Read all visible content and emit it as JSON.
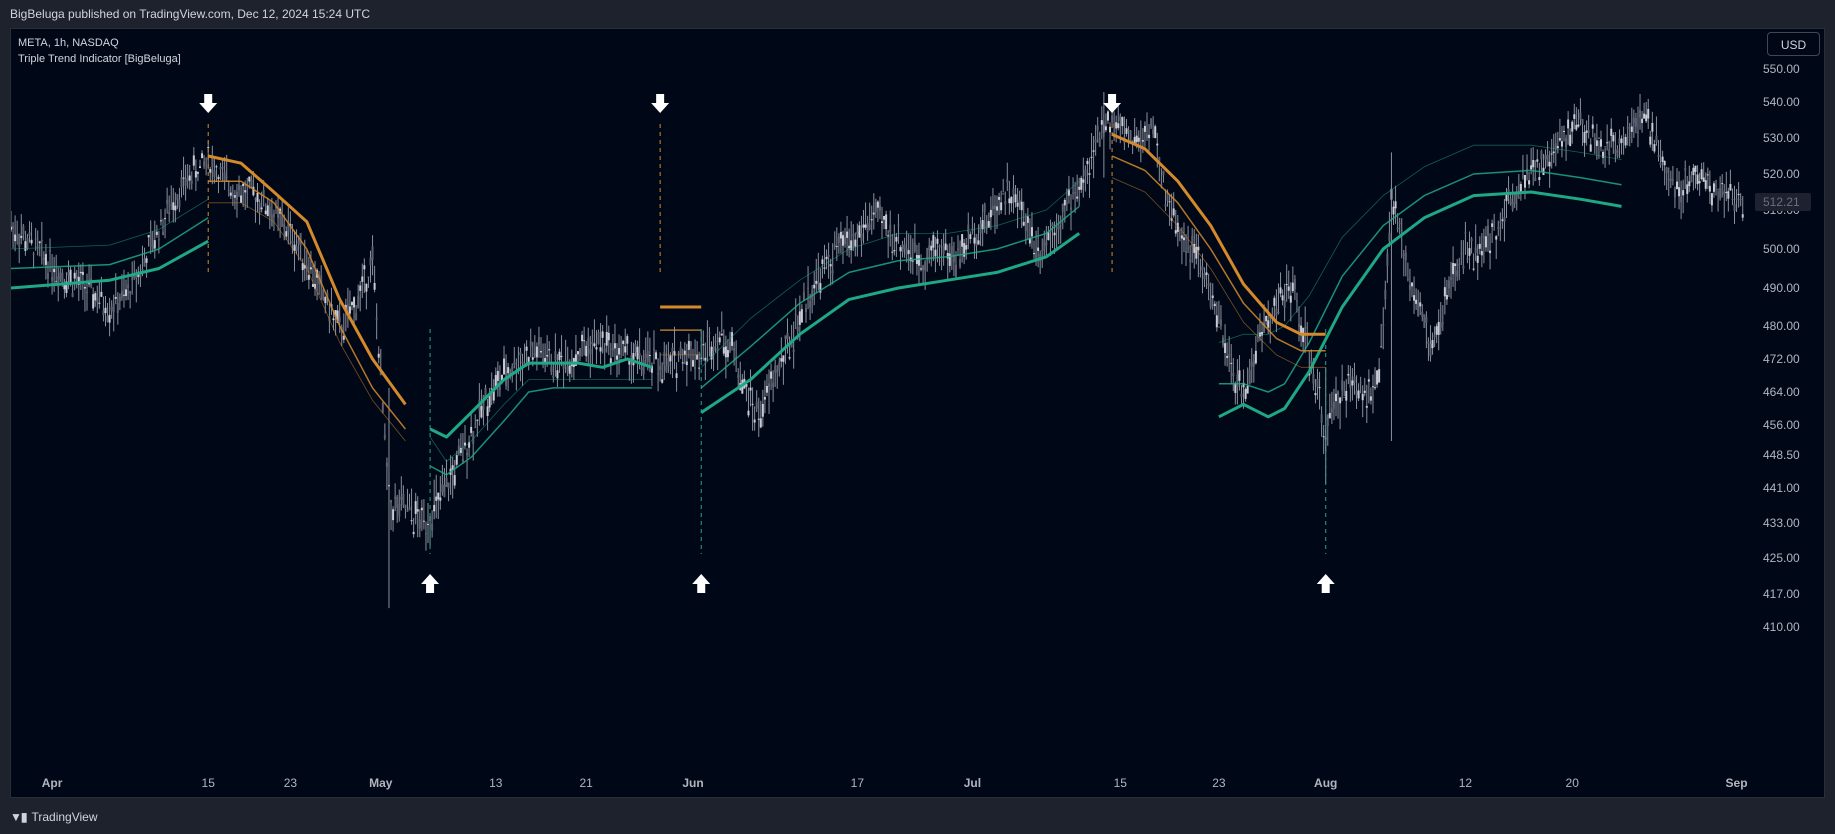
{
  "header": {
    "publish_info": "BigBeluga published on TradingView.com, Dec 12, 2024 15:24 UTC"
  },
  "legend": {
    "symbol_line": "META, 1h, NASDAQ",
    "indicator_name": "Triple Trend Indicator [BigBeluga]"
  },
  "currency": "USD",
  "footer": {
    "brand": "TradingView"
  },
  "colors": {
    "bg": "#000818",
    "up": "#1fa886",
    "down": "#d4892a",
    "candle": "#8a8f9c",
    "axis_text": "#b2b5be"
  },
  "chart_data": {
    "type": "line",
    "title": "",
    "y_axis": {
      "ticks": [
        550.0,
        540.0,
        530.0,
        520.0,
        510.0,
        500.0,
        490.0,
        480.0,
        472.0,
        464.0,
        456.0,
        448.5,
        441.0,
        433.0,
        425.0,
        417.0,
        410.0
      ]
    },
    "x_axis": {
      "labels": [
        "Apr",
        "15",
        "23",
        "May",
        "13",
        "21",
        "Jun",
        "17",
        "Jul",
        "15",
        "23",
        "Aug",
        "12",
        "20",
        "Sep"
      ]
    },
    "last_price": "512.21",
    "price_series": [
      {
        "t": 0,
        "p": 506
      },
      {
        "t": 3,
        "p": 500
      },
      {
        "t": 6,
        "p": 494
      },
      {
        "t": 9,
        "p": 490
      },
      {
        "t": 12,
        "p": 485
      },
      {
        "t": 14,
        "p": 488
      },
      {
        "t": 16,
        "p": 496
      },
      {
        "t": 18,
        "p": 505
      },
      {
        "t": 20,
        "p": 514
      },
      {
        "t": 22,
        "p": 520
      },
      {
        "t": 24,
        "p": 524
      },
      {
        "t": 26,
        "p": 518
      },
      {
        "t": 28,
        "p": 515
      },
      {
        "t": 30,
        "p": 514
      },
      {
        "t": 32,
        "p": 509
      },
      {
        "t": 34,
        "p": 504
      },
      {
        "t": 36,
        "p": 497
      },
      {
        "t": 38,
        "p": 488
      },
      {
        "t": 40,
        "p": 479
      },
      {
        "t": 42,
        "p": 486
      },
      {
        "t": 44,
        "p": 497
      },
      {
        "t": 46,
        "p": 437
      },
      {
        "t": 48,
        "p": 436
      },
      {
        "t": 50,
        "p": 433
      },
      {
        "t": 52,
        "p": 437
      },
      {
        "t": 54,
        "p": 445
      },
      {
        "t": 56,
        "p": 454
      },
      {
        "t": 58,
        "p": 463
      },
      {
        "t": 60,
        "p": 468
      },
      {
        "t": 62,
        "p": 472
      },
      {
        "t": 64,
        "p": 474
      },
      {
        "t": 66,
        "p": 471
      },
      {
        "t": 68,
        "p": 472
      },
      {
        "t": 70,
        "p": 475
      },
      {
        "t": 72,
        "p": 476
      },
      {
        "t": 74,
        "p": 474
      },
      {
        "t": 76,
        "p": 472
      },
      {
        "t": 78,
        "p": 471
      },
      {
        "t": 80,
        "p": 470
      },
      {
        "t": 82,
        "p": 474
      },
      {
        "t": 84,
        "p": 473
      },
      {
        "t": 86,
        "p": 478
      },
      {
        "t": 88,
        "p": 474
      },
      {
        "t": 89,
        "p": 466
      },
      {
        "t": 91,
        "p": 458
      },
      {
        "t": 93,
        "p": 468
      },
      {
        "t": 95,
        "p": 477
      },
      {
        "t": 97,
        "p": 488
      },
      {
        "t": 99,
        "p": 495
      },
      {
        "t": 101,
        "p": 501
      },
      {
        "t": 103,
        "p": 503
      },
      {
        "t": 105,
        "p": 509
      },
      {
        "t": 107,
        "p": 504
      },
      {
        "t": 109,
        "p": 500
      },
      {
        "t": 111,
        "p": 497
      },
      {
        "t": 113,
        "p": 501
      },
      {
        "t": 115,
        "p": 497
      },
      {
        "t": 117,
        "p": 504
      },
      {
        "t": 119,
        "p": 508
      },
      {
        "t": 121,
        "p": 516
      },
      {
        "t": 123,
        "p": 510
      },
      {
        "t": 125,
        "p": 500
      },
      {
        "t": 127,
        "p": 506
      },
      {
        "t": 129,
        "p": 513
      },
      {
        "t": 131,
        "p": 520
      },
      {
        "t": 133,
        "p": 535
      },
      {
        "t": 135,
        "p": 533
      },
      {
        "t": 137,
        "p": 529
      },
      {
        "t": 139,
        "p": 534
      },
      {
        "t": 140,
        "p": 518
      },
      {
        "t": 142,
        "p": 505
      },
      {
        "t": 144,
        "p": 499
      },
      {
        "t": 146,
        "p": 489
      },
      {
        "t": 148,
        "p": 472
      },
      {
        "t": 150,
        "p": 463
      },
      {
        "t": 152,
        "p": 478
      },
      {
        "t": 154,
        "p": 486
      },
      {
        "t": 156,
        "p": 490
      },
      {
        "t": 158,
        "p": 472
      },
      {
        "t": 160,
        "p": 454
      },
      {
        "t": 162,
        "p": 465
      },
      {
        "t": 164,
        "p": 466
      },
      {
        "t": 166,
        "p": 463
      },
      {
        "t": 167,
        "p": 478
      },
      {
        "t": 168,
        "p": 514
      },
      {
        "t": 169,
        "p": 503
      },
      {
        "t": 171,
        "p": 487
      },
      {
        "t": 173,
        "p": 474
      },
      {
        "t": 175,
        "p": 490
      },
      {
        "t": 177,
        "p": 500
      },
      {
        "t": 179,
        "p": 499
      },
      {
        "t": 181,
        "p": 506
      },
      {
        "t": 183,
        "p": 516
      },
      {
        "t": 185,
        "p": 522
      },
      {
        "t": 187,
        "p": 522
      },
      {
        "t": 189,
        "p": 531
      },
      {
        "t": 191,
        "p": 534
      },
      {
        "t": 193,
        "p": 528
      },
      {
        "t": 195,
        "p": 528
      },
      {
        "t": 197,
        "p": 533
      },
      {
        "t": 199,
        "p": 535
      },
      {
        "t": 201,
        "p": 523
      },
      {
        "t": 203,
        "p": 515
      },
      {
        "t": 205,
        "p": 521
      },
      {
        "t": 207,
        "p": 516
      },
      {
        "t": 209,
        "p": 515
      },
      {
        "t": 211,
        "p": 511
      }
    ],
    "series": [
      {
        "trend": "up",
        "segments": [
          {
            "outer": [
              [
                0,
                490
              ],
              [
                12,
                492
              ],
              [
                18,
                495
              ],
              [
                24,
                502
              ]
            ],
            "mid": [
              [
                0,
                495
              ],
              [
                12,
                496
              ],
              [
                18,
                500
              ],
              [
                24,
                508
              ]
            ],
            "inner": [
              [
                0,
                500
              ],
              [
                12,
                501
              ],
              [
                18,
                505
              ],
              [
                24,
                513
              ]
            ]
          },
          {
            "outer": [
              [
                51,
                455
              ],
              [
                53,
                453
              ],
              [
                56,
                459
              ],
              [
                60,
                467
              ],
              [
                63,
                471
              ],
              [
                66,
                471
              ],
              [
                69,
                471
              ],
              [
                72,
                470
              ],
              [
                75,
                472
              ],
              [
                78,
                470
              ]
            ],
            "mid": [
              [
                51,
                446
              ],
              [
                53,
                444
              ],
              [
                56,
                448
              ],
              [
                60,
                457
              ],
              [
                63,
                464
              ],
              [
                66,
                465
              ],
              [
                69,
                465
              ],
              [
                72,
                465
              ],
              [
                75,
                465
              ],
              [
                78,
                465
              ]
            ],
            "inner": [
              [
                51,
                453
              ],
              [
                53,
                447
              ],
              [
                56,
                452
              ],
              [
                60,
                461
              ],
              [
                63,
                467
              ],
              [
                66,
                467
              ],
              [
                69,
                467
              ],
              [
                72,
                467
              ],
              [
                75,
                467
              ],
              [
                78,
                467
              ]
            ]
          },
          {
            "outer": [
              [
                84,
                459
              ],
              [
                90,
                467
              ],
              [
                96,
                478
              ],
              [
                102,
                487
              ],
              [
                108,
                490
              ],
              [
                114,
                492
              ],
              [
                120,
                494
              ],
              [
                126,
                498
              ],
              [
                130,
                504
              ]
            ],
            "mid": [
              [
                84,
                465
              ],
              [
                90,
                475
              ],
              [
                96,
                486
              ],
              [
                102,
                494
              ],
              [
                108,
                497
              ],
              [
                114,
                498
              ],
              [
                120,
                500
              ],
              [
                126,
                504
              ],
              [
                130,
                511
              ]
            ],
            "inner": [
              [
                84,
                470
              ],
              [
                90,
                482
              ],
              [
                96,
                492
              ],
              [
                102,
                500
              ],
              [
                108,
                504
              ],
              [
                114,
                504
              ],
              [
                120,
                506
              ],
              [
                126,
                510
              ],
              [
                130,
                518
              ]
            ]
          },
          {
            "outer": [
              [
                147,
                458
              ],
              [
                150,
                461
              ],
              [
                153,
                458
              ],
              [
                155,
                460
              ],
              [
                158,
                469
              ],
              [
                162,
                485
              ],
              [
                167,
                500
              ],
              [
                172,
                508
              ],
              [
                178,
                514
              ],
              [
                185,
                515
              ],
              [
                191,
                513
              ],
              [
                196,
                511
              ]
            ],
            "mid": [
              [
                147,
                466
              ],
              [
                150,
                466
              ],
              [
                153,
                464
              ],
              [
                155,
                466
              ],
              [
                158,
                476
              ],
              [
                162,
                493
              ],
              [
                167,
                506
              ],
              [
                172,
                514
              ],
              [
                178,
                520
              ],
              [
                185,
                521
              ],
              [
                191,
                519
              ],
              [
                196,
                517
              ]
            ],
            "inner": [
              [
                147,
                476
              ],
              [
                150,
                478
              ],
              [
                153,
                478
              ],
              [
                155,
                480
              ],
              [
                158,
                488
              ],
              [
                162,
                503
              ],
              [
                167,
                514
              ],
              [
                172,
                522
              ],
              [
                178,
                528
              ],
              [
                185,
                528
              ],
              [
                191,
                526
              ],
              [
                196,
                524
              ]
            ]
          }
        ]
      },
      {
        "trend": "down",
        "segments": [
          {
            "outer": [
              [
                24,
                525
              ],
              [
                28,
                523
              ],
              [
                32,
                515
              ],
              [
                36,
                507
              ],
              [
                40,
                487
              ],
              [
                44,
                472
              ],
              [
                48,
                461
              ]
            ],
            "mid": [
              [
                24,
                518
              ],
              [
                28,
                518
              ],
              [
                32,
                512
              ],
              [
                36,
                500
              ],
              [
                40,
                480
              ],
              [
                44,
                465
              ],
              [
                48,
                455
              ]
            ],
            "inner": [
              [
                24,
                512
              ],
              [
                28,
                512
              ],
              [
                32,
                507
              ],
              [
                36,
                495
              ],
              [
                40,
                476
              ],
              [
                44,
                462
              ],
              [
                48,
                452
              ]
            ]
          },
          {
            "outer": [
              [
                79,
                485
              ],
              [
                82,
                485
              ],
              [
                84,
                485
              ]
            ],
            "mid": [
              [
                79,
                479
              ],
              [
                82,
                479
              ],
              [
                84,
                479
              ]
            ],
            "inner": [
              [
                79,
                473
              ],
              [
                82,
                473
              ],
              [
                84,
                473
              ]
            ]
          },
          {
            "outer": [
              [
                134,
                531
              ],
              [
                138,
                527
              ],
              [
                142,
                518
              ],
              [
                146,
                506
              ],
              [
                150,
                491
              ],
              [
                154,
                481
              ],
              [
                157,
                478
              ],
              [
                160,
                478
              ]
            ],
            "mid": [
              [
                134,
                525
              ],
              [
                138,
                521
              ],
              [
                142,
                512
              ],
              [
                146,
                500
              ],
              [
                150,
                486
              ],
              [
                154,
                477
              ],
              [
                157,
                474
              ],
              [
                160,
                474
              ]
            ],
            "inner": [
              [
                134,
                519
              ],
              [
                138,
                515
              ],
              [
                142,
                506
              ],
              [
                146,
                495
              ],
              [
                150,
                481
              ],
              [
                154,
                473
              ],
              [
                157,
                470
              ],
              [
                160,
                470
              ]
            ]
          }
        ]
      }
    ],
    "signals": [
      {
        "type": "down",
        "t": 24
      },
      {
        "type": "up",
        "t": 51
      },
      {
        "type": "down",
        "t": 79
      },
      {
        "type": "up",
        "t": 84
      },
      {
        "type": "down",
        "t": 134
      },
      {
        "type": "up",
        "t": 160
      }
    ]
  }
}
